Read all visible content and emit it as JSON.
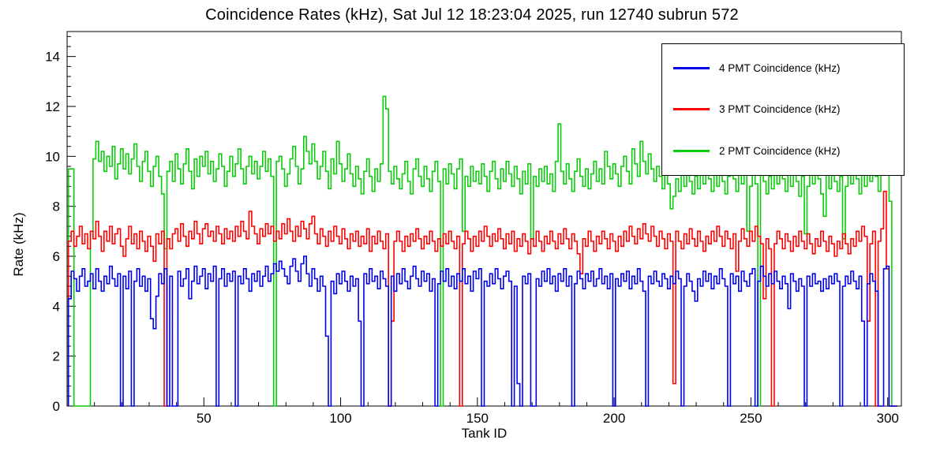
{
  "page": {
    "background": "#ffffff"
  },
  "chart_data": {
    "type": "line",
    "subtype": "step-histogram",
    "title": "Coincidence Rates (kHz), Sat Jul 12 18:23:04 2025, run 12740 subrun 572",
    "xlabel": "Tank ID",
    "ylabel": "Rate (kHz)",
    "xlim": [
      0,
      305
    ],
    "ylim": [
      0,
      15
    ],
    "x_ticks_major": [
      50,
      100,
      150,
      200,
      250,
      300
    ],
    "x_minor_step": 10,
    "y_ticks_major": [
      0,
      2,
      4,
      6,
      8,
      10,
      12,
      14
    ],
    "y_minor_step": 0.4,
    "grid": false,
    "legend_position": "top-right",
    "x_bin_start": 0.5,
    "series": [
      {
        "id": "4pmt",
        "name": "4 PMT Coincidence (kHz)",
        "color": "#0000ee",
        "values": [
          4.3,
          5.4,
          5.1,
          4.6,
          5.2,
          5.5,
          4.8,
          5.0,
          5.3,
          4.7,
          5.5,
          5.0,
          4.6,
          5.2,
          4.9,
          5.6,
          5.1,
          4.8,
          5.3,
          0,
          5.2,
          4.7,
          5.4,
          0,
          5.0,
          5.5,
          4.8,
          5.2,
          4.6,
          5.1,
          3.5,
          3.1,
          4.4,
          5.3,
          4.9,
          5.5,
          0,
          5.2,
          0,
          0,
          5.4,
          4.8,
          5.1,
          5.5,
          4.3,
          5.0,
          5.6,
          4.9,
          5.2,
          5.5,
          4.7,
          5.3,
          5.0,
          5.6,
          0,
          5.1,
          5.5,
          4.8,
          5.3,
          5.0,
          5.4,
          0,
          5.2,
          4.9,
          5.5,
          5.1,
          4.6,
          5.3,
          5.0,
          5.4,
          4.8,
          5.2,
          5.6,
          5.0,
          5.3,
          5.7,
          5.4,
          5.8,
          5.5,
          5.2,
          4.9,
          5.6,
          5.9,
          5.4,
          5.0,
          5.7,
          6.0,
          5.3,
          4.8,
          5.5,
          5.1,
          4.6,
          5.2,
          4.8,
          2.8,
          0,
          5.0,
          4.5,
          5.3,
          4.9,
          5.4,
          5.0,
          4.6,
          5.2,
          4.8,
          5.1,
          3.4,
          0,
          5.3,
          4.9,
          5.5,
          5.0,
          5.2,
          4.7,
          5.4,
          5.1,
          4.8,
          0,
          5.2,
          4.6,
          5.3,
          4.9,
          5.5,
          5.0,
          4.7,
          5.2,
          5.6,
          5.1,
          4.8,
          5.4,
          5.0,
          5.3,
          4.6,
          5.1,
          0,
          4.9,
          5.4,
          5.0,
          5.5,
          4.8,
          5.2,
          4.7,
          5.3,
          5.0,
          5.5,
          4.9,
          5.2,
          4.6,
          5.4,
          5.1,
          5.5,
          0,
          5.0,
          4.8,
          5.3,
          4.9,
          5.5,
          5.1,
          4.7,
          5.2,
          5.4,
          5.0,
          0,
          4.8,
          0.9,
          0,
          5.2,
          4.9,
          5.3,
          0,
          0,
          5.1,
          4.8,
          5.4,
          5.0,
          5.5,
          4.9,
          5.2,
          4.6,
          5.3,
          5.0,
          5.5,
          4.8,
          5.2,
          0,
          4.9,
          5.4,
          5.1,
          4.7,
          5.3,
          5.0,
          5.4,
          4.8,
          5.1,
          5.5,
          4.9,
          5.2,
          4.7,
          5.3,
          0,
          5.1,
          4.8,
          5.3,
          5.0,
          5.4,
          4.7,
          5.2,
          4.9,
          5.5,
          5.0,
          4.6,
          0,
          5.2,
          4.9,
          5.4,
          5.0,
          4.8,
          5.3,
          5.1,
          4.7,
          5.2,
          4.9,
          5.4,
          5.1,
          0,
          4.8,
          5.3,
          5.0,
          4.6,
          4.2,
          5.1,
          4.8,
          5.4,
          5.0,
          5.3,
          4.7,
          5.2,
          4.9,
          5.5,
          5.1,
          4.8,
          0,
          5.3,
          4.9,
          5.2,
          4.6,
          5.4,
          5.0,
          4.8,
          5.3,
          5.5,
          0,
          5.0,
          5.6,
          5.2,
          4.8,
          5.3,
          4.9,
          5.4,
          5.0,
          4.7,
          5.2,
          4.9,
          3.9,
          5.3,
          5.0,
          4.6,
          5.1,
          4.8,
          0,
          5.2,
          4.8,
          5.3,
          4.9,
          5.0,
          4.6,
          5.1,
          4.7,
          5.2,
          4.9,
          5.3,
          5.0,
          0,
          4.8,
          5.2,
          4.9,
          5.4,
          5.0,
          4.7,
          5.2,
          3.4,
          0,
          4.9,
          5.3,
          5.0,
          4.6,
          0,
          0,
          5.5,
          5.6,
          0,
          0,
          0
        ]
      },
      {
        "id": "3pmt",
        "name": "3 PMT Coincidence (kHz)",
        "color": "#ff0000",
        "values": [
          6.6,
          7.0,
          6.4,
          6.8,
          7.2,
          6.5,
          6.9,
          6.3,
          7.0,
          6.7,
          7.4,
          6.8,
          6.2,
          7.0,
          6.6,
          7.2,
          6.5,
          6.9,
          7.1,
          6.4,
          6.0,
          6.7,
          7.2,
          6.5,
          6.9,
          6.3,
          7.0,
          6.6,
          6.2,
          6.8,
          6.4,
          5.8,
          6.9,
          6.5,
          7.0,
          0,
          6.7,
          6.3,
          6.9,
          7.1,
          6.6,
          7.3,
          6.8,
          6.4,
          7.0,
          6.7,
          7.4,
          6.9,
          6.5,
          7.1,
          7.3,
          6.8,
          7.0,
          6.6,
          7.2,
          6.9,
          6.5,
          7.1,
          6.7,
          7.0,
          6.6,
          7.2,
          6.8,
          7.4,
          7.0,
          6.7,
          7.8,
          7.2,
          6.9,
          6.5,
          7.1,
          6.8,
          7.3,
          6.9,
          7.2,
          6.6,
          7.0,
          6.7,
          7.3,
          6.9,
          7.5,
          7.0,
          6.6,
          7.2,
          6.8,
          7.4,
          7.1,
          6.7,
          7.3,
          7.6,
          6.9,
          6.5,
          7.1,
          6.8,
          6.4,
          7.0,
          6.6,
          7.2,
          6.8,
          6.5,
          7.1,
          6.7,
          6.3,
          6.9,
          6.6,
          7.0,
          6.4,
          6.8,
          6.5,
          7.1,
          6.2,
          6.8,
          6.5,
          7.0,
          6.6,
          6.3,
          6.9,
          0,
          3.4,
          6.6,
          7.0,
          6.6,
          6.2,
          6.8,
          6.4,
          6.9,
          6.6,
          7.1,
          6.7,
          6.3,
          6.8,
          6.5,
          7.0,
          6.6,
          6.2,
          6.7,
          6.4,
          6.9,
          6.5,
          7.0,
          6.6,
          6.3,
          6.8,
          0,
          6.5,
          7.0,
          6.7,
          6.2,
          6.8,
          6.4,
          7.0,
          6.6,
          7.2,
          6.8,
          6.4,
          6.9,
          6.6,
          7.1,
          6.7,
          6.3,
          6.9,
          6.5,
          7.0,
          6.2,
          6.7,
          6.4,
          6.9,
          6.6,
          6.1,
          6.7,
          6.4,
          7.0,
          6.6,
          6.2,
          6.8,
          6.5,
          7.0,
          6.6,
          6.3,
          6.9,
          6.5,
          7.1,
          6.7,
          6.3,
          6.9,
          6.6,
          6.1,
          5.3,
          6.7,
          6.4,
          7.0,
          6.6,
          6.2,
          6.8,
          6.5,
          7.0,
          6.7,
          6.3,
          6.9,
          6.6,
          6.2,
          6.8,
          6.4,
          7.0,
          6.6,
          7.2,
          6.8,
          6.5,
          7.1,
          6.7,
          7.3,
          6.9,
          6.6,
          7.2,
          6.8,
          6.4,
          7.0,
          6.7,
          6.3,
          6.9,
          6.6,
          0.9,
          7.0,
          6.6,
          6.3,
          6.9,
          6.5,
          7.1,
          6.7,
          6.4,
          7.0,
          6.6,
          6.2,
          6.8,
          6.5,
          7.0,
          6.6,
          7.2,
          6.8,
          6.4,
          7.0,
          6.7,
          6.3,
          6.9,
          5.4,
          6.6,
          7.1,
          6.7,
          6.4,
          7.0,
          6.6,
          7.2,
          6.8,
          6.5,
          4.3,
          6.7,
          6.3,
          0,
          6.5,
          7.0,
          6.7,
          6.3,
          6.9,
          6.6,
          6.2,
          6.8,
          6.4,
          7.0,
          6.6,
          6.3,
          6.9,
          6.5,
          6.1,
          6.7,
          6.4,
          7.0,
          6.6,
          6.2,
          6.8,
          6.5,
          6.0,
          6.6,
          6.3,
          6.9,
          6.5,
          6.1,
          6.7,
          6.4,
          7.0,
          6.6,
          7.2,
          6.8,
          3.4,
          6.5,
          7.0,
          0,
          6.6,
          7.1,
          8.6,
          5.5,
          0,
          0,
          0
        ]
      },
      {
        "id": "2pmt",
        "name": "2 PMT Coincidence (kHz)",
        "color": "#0acc0a",
        "values": [
          9.5,
          9.5,
          0,
          0,
          0,
          0,
          0,
          0,
          7.0,
          9.9,
          10.6,
          9.8,
          10.2,
          9.4,
          10.0,
          9.6,
          10.4,
          9.1,
          9.7,
          10.3,
          9.5,
          10.1,
          9.3,
          9.9,
          10.5,
          9.6,
          9.0,
          9.8,
          10.2,
          9.4,
          8.8,
          9.6,
          10.0,
          9.2,
          8.5,
          6.3,
          9.4,
          9.8,
          9.0,
          10.1,
          9.5,
          8.9,
          9.7,
          10.3,
          9.4,
          8.7,
          9.9,
          9.2,
          10.0,
          9.6,
          10.2,
          9.3,
          9.8,
          9.0,
          9.5,
          10.1,
          9.6,
          8.8,
          9.4,
          10.0,
          9.2,
          9.7,
          10.3,
          9.5,
          8.9,
          9.6,
          10.0,
          9.3,
          9.8,
          9.1,
          9.6,
          10.2,
          9.4,
          9.9,
          9.2,
          0,
          9.8,
          10.0,
          9.5,
          8.8,
          9.3,
          9.9,
          10.4,
          9.6,
          8.9,
          9.5,
          10.8,
          10.2,
          9.7,
          10.5,
          9.8,
          9.1,
          9.6,
          10.2,
          9.4,
          8.7,
          9.9,
          9.3,
          10.6,
          9.7,
          9.0,
          9.5,
          10.1,
          9.3,
          8.8,
          9.6,
          9.1,
          8.5,
          9.4,
          9.9,
          9.2,
          8.6,
          9.5,
          9.0,
          9.7,
          12.4,
          11.9,
          9.4,
          8.9,
          9.6,
          9.1,
          8.7,
          9.3,
          9.8,
          9.0,
          8.5,
          9.5,
          9.9,
          9.2,
          8.8,
          9.6,
          9.1,
          8.6,
          9.4,
          9.8,
          9.0,
          0,
          9.5,
          8.9,
          9.7,
          9.3,
          8.7,
          9.5,
          9.9,
          7.0,
          9.2,
          8.8,
          9.6,
          9.0,
          9.4,
          8.9,
          9.7,
          9.2,
          8.6,
          9.4,
          9.8,
          9.1,
          8.7,
          9.5,
          9.0,
          9.8,
          9.3,
          8.8,
          9.6,
          9.1,
          8.5,
          9.4,
          8.9,
          9.7,
          6.7,
          9.2,
          8.8,
          9.5,
          9.0,
          9.6,
          8.9,
          9.3,
          8.6,
          9.8,
          11.3,
          9.4,
          8.9,
          9.7,
          9.1,
          8.6,
          9.4,
          9.9,
          9.2,
          8.8,
          9.5,
          8.7,
          9.3,
          9.8,
          9.0,
          9.5,
          8.9,
          10.2,
          9.6,
          9.1,
          9.7,
          9.3,
          8.8,
          9.6,
          10.0,
          9.4,
          8.9,
          10.3,
          9.7,
          9.2,
          10.6,
          9.8,
          9.3,
          10.1,
          9.5,
          9.0,
          9.6,
          9.2,
          8.7,
          9.4,
          8.9,
          7.9,
          8.4,
          9.1,
          8.6,
          9.3,
          8.8,
          9.5,
          9.0,
          8.5,
          9.2,
          8.7,
          9.4,
          8.9,
          9.6,
          9.1,
          8.6,
          9.3,
          8.8,
          9.5,
          9.0,
          8.5,
          9.2,
          9.7,
          9.1,
          8.6,
          9.3,
          8.9,
          9.5,
          7.0,
          8.8,
          9.4,
          8.9,
          0,
          9.5,
          9.0,
          8.5,
          9.2,
          8.7,
          9.4,
          8.9,
          9.6,
          9.1,
          8.6,
          9.3,
          8.8,
          9.5,
          9.0,
          8.4,
          9.2,
          6.9,
          8.8,
          9.4,
          8.9,
          9.6,
          9.1,
          8.5,
          7.6,
          9.3,
          8.7,
          9.5,
          9.0,
          8.6,
          9.2,
          6.7,
          8.8,
          9.4,
          8.9,
          9.6,
          9.1,
          8.5,
          9.3,
          8.8,
          9.5,
          9.0,
          9.7,
          9.2,
          8.6,
          10.5,
          11.0,
          11.0,
          8.2,
          0,
          0
        ]
      }
    ]
  }
}
